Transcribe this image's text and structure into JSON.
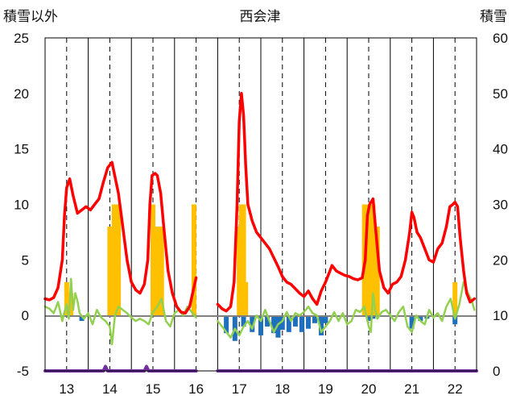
{
  "chart_data": {
    "type": "bar+line",
    "title": "西会津",
    "ylabel_left": "積雪以外",
    "ylabel_right": "積雪",
    "ylim_left": [
      -5,
      25
    ],
    "ylim_right": [
      0,
      60
    ],
    "left_ticks": [
      "25",
      "20",
      "15",
      "10",
      "5",
      "0",
      "-5"
    ],
    "right_ticks": [
      "60",
      "50",
      "40",
      "30",
      "20",
      "10",
      "0"
    ],
    "x_ticks": [
      "13",
      "14",
      "15",
      "16",
      "17",
      "18",
      "19",
      "20",
      "21",
      "22"
    ],
    "x_range": [
      12.5,
      22.5
    ],
    "grid": "vertical dashed at hours, solid at day boundaries",
    "colors": {
      "red_series": "#ff0000",
      "green_series": "#92d050",
      "orange_bars": "#ffc000",
      "blue_bars": "#1f6fbf",
      "purple_series": "#7030a0",
      "zero_line": "#808080",
      "grid": "#000000"
    },
    "series": [
      {
        "kind": "line",
        "axis": "left",
        "color": "#ff0000",
        "points": [
          [
            12.5,
            1.5
          ],
          [
            12.6,
            1.4
          ],
          [
            12.7,
            1.6
          ],
          [
            12.8,
            2.5
          ],
          [
            12.9,
            5
          ],
          [
            12.95,
            9
          ],
          [
            13.0,
            11.5
          ],
          [
            13.07,
            12.3
          ],
          [
            13.15,
            10.8
          ],
          [
            13.25,
            9.2
          ],
          [
            13.35,
            9.5
          ],
          [
            13.45,
            9.8
          ],
          [
            13.55,
            9.5
          ],
          [
            13.65,
            10.0
          ],
          [
            13.75,
            10.5
          ],
          [
            13.85,
            12.0
          ],
          [
            13.95,
            13.3
          ],
          [
            14.05,
            13.8
          ],
          [
            14.12,
            12.5
          ],
          [
            14.2,
            11.0
          ],
          [
            14.3,
            8.0
          ],
          [
            14.4,
            5.0
          ],
          [
            14.5,
            3.0
          ],
          [
            14.6,
            2.3
          ],
          [
            14.7,
            2.0
          ],
          [
            14.8,
            2.8
          ],
          [
            14.88,
            5.0
          ],
          [
            14.93,
            10.0
          ],
          [
            14.98,
            12.6
          ],
          [
            15.05,
            12.8
          ],
          [
            15.1,
            12.6
          ],
          [
            15.18,
            11.0
          ],
          [
            15.25,
            8.0
          ],
          [
            15.35,
            4.0
          ],
          [
            15.45,
            2.0
          ],
          [
            15.55,
            0.8
          ],
          [
            15.65,
            0.3
          ],
          [
            15.75,
            0.2
          ],
          [
            15.85,
            0.8
          ],
          [
            15.92,
            2.0
          ],
          [
            16.0,
            3.4
          ],
          null,
          [
            16.5,
            1.0
          ],
          [
            16.6,
            0.6
          ],
          [
            16.7,
            0.4
          ],
          [
            16.8,
            0.8
          ],
          [
            16.88,
            3.0
          ],
          [
            16.95,
            10.0
          ],
          [
            17.0,
            17.5
          ],
          [
            17.05,
            20.0
          ],
          [
            17.1,
            18.0
          ],
          [
            17.15,
            13.5
          ],
          [
            17.2,
            10.0
          ],
          [
            17.3,
            8.5
          ],
          [
            17.4,
            7.5
          ],
          [
            17.5,
            7.0
          ],
          [
            17.6,
            6.5
          ],
          [
            17.7,
            6.0
          ],
          [
            17.8,
            5.2
          ],
          [
            17.9,
            4.4
          ],
          [
            18.0,
            3.5
          ],
          [
            18.1,
            3.0
          ],
          [
            18.2,
            2.8
          ],
          [
            18.3,
            2.4
          ],
          [
            18.4,
            2.0
          ],
          [
            18.5,
            1.7
          ],
          [
            18.6,
            2.2
          ],
          [
            18.7,
            1.5
          ],
          [
            18.8,
            1.0
          ],
          [
            18.9,
            2.2
          ],
          [
            19.0,
            3.0
          ],
          [
            19.1,
            4.0
          ],
          [
            19.15,
            4.5
          ],
          [
            19.25,
            4.0
          ],
          [
            19.35,
            3.8
          ],
          [
            19.45,
            3.6
          ],
          [
            19.55,
            3.5
          ],
          [
            19.65,
            3.3
          ],
          [
            19.75,
            3.2
          ],
          [
            19.85,
            3.4
          ],
          [
            19.92,
            5.0
          ],
          [
            19.97,
            9.0
          ],
          [
            20.02,
            10.0
          ],
          [
            20.1,
            10.5
          ],
          [
            20.18,
            7.0
          ],
          [
            20.25,
            4.0
          ],
          [
            20.35,
            2.5
          ],
          [
            20.45,
            2.0
          ],
          [
            20.55,
            2.8
          ],
          [
            20.65,
            3.0
          ],
          [
            20.75,
            3.5
          ],
          [
            20.85,
            5.0
          ],
          [
            20.95,
            7.5
          ],
          [
            21.0,
            9.3
          ],
          [
            21.05,
            8.8
          ],
          [
            21.12,
            7.5
          ],
          [
            21.2,
            7.0
          ],
          [
            21.3,
            6.0
          ],
          [
            21.4,
            5.0
          ],
          [
            21.5,
            4.8
          ],
          [
            21.6,
            6.0
          ],
          [
            21.7,
            6.5
          ],
          [
            21.8,
            8.0
          ],
          [
            21.88,
            9.8
          ],
          [
            21.95,
            10.0
          ],
          [
            22.0,
            10.2
          ],
          [
            22.06,
            9.8
          ],
          [
            22.12,
            7.0
          ],
          [
            22.2,
            4.0
          ],
          [
            22.27,
            2.0
          ],
          [
            22.35,
            1.2
          ],
          [
            22.45,
            1.5
          ]
        ]
      },
      {
        "kind": "line",
        "axis": "left",
        "color": "#92d050",
        "points": [
          [
            12.5,
            0.8
          ],
          [
            12.6,
            0.6
          ],
          [
            12.7,
            0.2
          ],
          [
            12.8,
            1.2
          ],
          [
            12.9,
            -0.5
          ],
          [
            12.95,
            0.3
          ],
          [
            13.0,
            1.0
          ],
          [
            13.05,
            -0.3
          ],
          [
            13.1,
            3.3
          ],
          [
            13.15,
            0.5
          ],
          [
            13.2,
            2.0
          ],
          [
            13.25,
            1.3
          ],
          [
            13.3,
            0.2
          ],
          [
            13.4,
            -0.3
          ],
          [
            13.5,
            0.2
          ],
          [
            13.6,
            -0.8
          ],
          [
            13.7,
            0.5
          ],
          [
            13.8,
            -0.2
          ],
          [
            13.9,
            -0.5
          ],
          [
            14.0,
            -1.0
          ],
          [
            14.05,
            -2.6
          ],
          [
            14.12,
            0.0
          ],
          [
            14.2,
            0.8
          ],
          [
            14.3,
            0.5
          ],
          [
            14.4,
            0.2
          ],
          [
            14.5,
            -0.2
          ],
          [
            14.6,
            -0.5
          ],
          [
            14.7,
            -0.3
          ],
          [
            14.8,
            -0.5
          ],
          [
            14.9,
            -0.8
          ],
          [
            15.0,
            0.3
          ],
          [
            15.1,
            0.8
          ],
          [
            15.2,
            1.5
          ],
          [
            15.3,
            -0.5
          ],
          [
            15.4,
            -1.0
          ],
          [
            15.5,
            0.2
          ],
          [
            15.6,
            0.5
          ],
          [
            15.7,
            0.0
          ],
          [
            15.8,
            0.8
          ],
          [
            15.9,
            0.3
          ],
          [
            16.0,
            -0.2
          ],
          null,
          [
            16.5,
            -0.5
          ],
          [
            16.6,
            -1.0
          ],
          [
            16.7,
            -1.5
          ],
          [
            16.8,
            -2.0
          ],
          [
            16.9,
            -1.2
          ],
          [
            17.0,
            -1.8
          ],
          [
            17.1,
            -1.0
          ],
          [
            17.2,
            -0.5
          ],
          [
            17.3,
            -1.2
          ],
          [
            17.4,
            0.0
          ],
          [
            17.5,
            -0.5
          ],
          [
            17.6,
            0.5
          ],
          [
            17.7,
            -0.5
          ],
          [
            17.8,
            -1.5
          ],
          [
            17.9,
            -0.8
          ],
          [
            18.0,
            -0.5
          ],
          [
            18.1,
            0.3
          ],
          [
            18.2,
            -0.5
          ],
          [
            18.3,
            0.2
          ],
          [
            18.4,
            0.0
          ],
          [
            18.5,
            0.3
          ],
          [
            18.6,
            0.8
          ],
          [
            18.7,
            0.2
          ],
          [
            18.8,
            0.0
          ],
          [
            18.9,
            -1.5
          ],
          [
            19.0,
            -1.0
          ],
          [
            19.1,
            -0.5
          ],
          [
            19.2,
            0.3
          ],
          [
            19.3,
            -0.5
          ],
          [
            19.4,
            0.2
          ],
          [
            19.5,
            -0.8
          ],
          [
            19.6,
            -0.5
          ],
          [
            19.7,
            0.5
          ],
          [
            19.8,
            0.3
          ],
          [
            19.9,
            0.8
          ],
          [
            20.0,
            -1.0
          ],
          [
            20.05,
            -1.5
          ],
          [
            20.1,
            2.0
          ],
          [
            20.15,
            0.5
          ],
          [
            20.2,
            -0.3
          ],
          [
            20.3,
            0.3
          ],
          [
            20.4,
            0.5
          ],
          [
            20.5,
            0.0
          ],
          [
            20.6,
            -0.5
          ],
          [
            20.7,
            0.3
          ],
          [
            20.8,
            0.8
          ],
          [
            20.9,
            -1.0
          ],
          [
            21.0,
            -1.5
          ],
          [
            21.1,
            0.0
          ],
          [
            21.2,
            -0.5
          ],
          [
            21.3,
            -0.8
          ],
          [
            21.4,
            0.5
          ],
          [
            21.5,
            -0.2
          ],
          [
            21.6,
            0.2
          ],
          [
            21.7,
            -0.5
          ],
          [
            21.8,
            0.8
          ],
          [
            21.9,
            1.5
          ],
          [
            22.0,
            -0.3
          ],
          [
            22.1,
            1.0
          ],
          [
            22.2,
            3.0
          ],
          [
            22.3,
            2.0
          ],
          [
            22.4,
            1.2
          ],
          [
            22.45,
            0.5
          ]
        ]
      },
      {
        "kind": "bar",
        "axis": "right",
        "color": "#ffc000",
        "base": 10,
        "bars": [
          [
            13.0,
            16
          ],
          [
            13.1,
            14
          ],
          [
            14.0,
            26
          ],
          [
            14.1,
            30
          ],
          [
            14.2,
            30
          ],
          [
            15.0,
            30
          ],
          [
            15.1,
            26
          ],
          [
            15.2,
            26
          ],
          [
            15.95,
            30
          ],
          [
            17.0,
            26
          ],
          [
            17.05,
            30
          ],
          [
            17.1,
            30
          ],
          [
            17.15,
            16
          ],
          [
            19.9,
            30
          ],
          [
            20.0,
            30
          ],
          [
            20.1,
            30
          ],
          [
            20.2,
            26
          ],
          [
            22.0,
            16
          ]
        ]
      },
      {
        "kind": "bar",
        "axis": "left",
        "color": "#1f6fbf",
        "base": 0,
        "bars": [
          [
            13.35,
            -0.5
          ],
          [
            16.7,
            -1.6
          ],
          [
            16.9,
            -2.3
          ],
          [
            17.1,
            -1.0
          ],
          [
            17.3,
            -1.5
          ],
          [
            17.5,
            -1.8
          ],
          [
            17.65,
            -1.0
          ],
          [
            17.8,
            -1.6
          ],
          [
            17.9,
            -2.0
          ],
          [
            18.0,
            -1.3
          ],
          [
            18.15,
            -1.5
          ],
          [
            18.3,
            -1.0
          ],
          [
            18.45,
            -1.5
          ],
          [
            18.6,
            -1.2
          ],
          [
            18.75,
            -0.7
          ],
          [
            18.9,
            -1.8
          ],
          [
            19.0,
            -0.7
          ],
          [
            20.0,
            -0.5
          ],
          [
            20.1,
            -0.3
          ],
          [
            21.0,
            -1.2
          ],
          [
            21.2,
            -0.5
          ],
          [
            21.35,
            -0.3
          ],
          [
            22.0,
            -0.8
          ]
        ]
      },
      {
        "kind": "line",
        "axis": "left",
        "color": "#7030a0",
        "points": [
          [
            12.5,
            -5
          ],
          [
            13.85,
            -5
          ],
          [
            13.9,
            -4.6
          ],
          [
            13.95,
            -5
          ],
          [
            14.8,
            -5
          ],
          [
            14.85,
            -4.6
          ],
          [
            14.9,
            -5
          ],
          [
            16.0,
            -5
          ],
          null,
          [
            16.5,
            -5
          ],
          [
            22.5,
            -5
          ]
        ]
      }
    ]
  }
}
